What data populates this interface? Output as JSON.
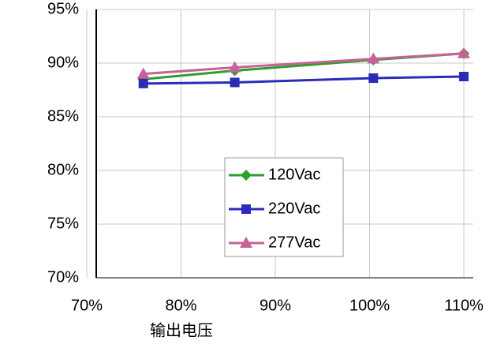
{
  "chart_data": {
    "type": "line",
    "x_label": "输出电压",
    "xlim": [
      70,
      111
    ],
    "ylim": [
      70,
      95
    ],
    "xticks": [
      {
        "value": 70,
        "label": "70%"
      },
      {
        "value": 80,
        "label": "80%"
      },
      {
        "value": 90,
        "label": "90%"
      },
      {
        "value": 100,
        "label": "100%"
      },
      {
        "value": 110,
        "label": "110%"
      }
    ],
    "yticks": [
      {
        "value": 70,
        "label": "70%"
      },
      {
        "value": 75,
        "label": "75%"
      },
      {
        "value": 80,
        "label": "80%"
      },
      {
        "value": 85,
        "label": "85%"
      },
      {
        "value": 90,
        "label": "90%"
      },
      {
        "value": 95,
        "label": "95%"
      }
    ],
    "grid": true,
    "x": [
      76,
      85.7,
      100.4,
      110
    ],
    "series": [
      {
        "name": "120Vac",
        "color": "#2e9e2e",
        "marker": "diamond",
        "values": [
          88.5,
          89.3,
          90.3,
          90.9
        ]
      },
      {
        "name": "220Vac",
        "color": "#2b2bb8",
        "marker": "square",
        "values": [
          88.1,
          88.2,
          88.6,
          88.75
        ]
      },
      {
        "name": "277Vac",
        "color": "#c8609a",
        "marker": "triangle",
        "values": [
          89.0,
          89.6,
          90.4,
          90.9
        ]
      }
    ]
  }
}
